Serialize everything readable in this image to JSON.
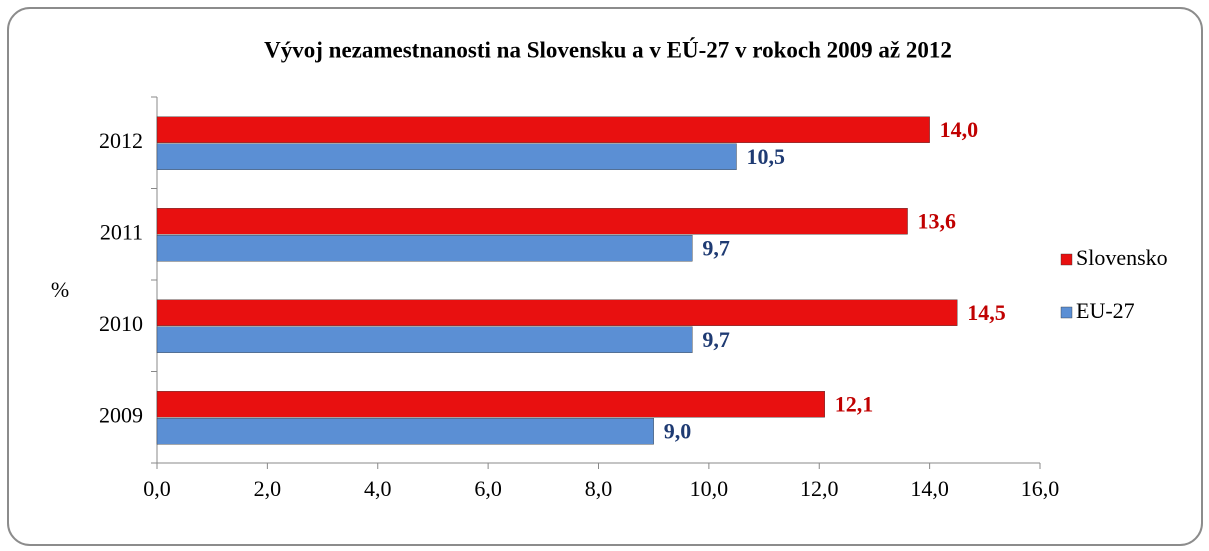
{
  "chart_data": {
    "type": "hbar",
    "title": "Vývoj nezamestnanosti na Slovensku a v EÚ-27 v rokoch 2009 až 2012",
    "ylabel": "%",
    "categories": [
      "2009",
      "2010",
      "2011",
      "2012"
    ],
    "series": [
      {
        "name": "Slovensko",
        "color": "#e81010",
        "label_color": "#c00000",
        "values": [
          12.1,
          14.5,
          13.6,
          14.0
        ],
        "value_labels": [
          "12,1",
          "14,5",
          "13,6",
          "14,0"
        ]
      },
      {
        "name": "EU-27",
        "color": "#5b8fd4",
        "label_color": "#1f3b73",
        "values": [
          9.0,
          9.7,
          9.7,
          10.5
        ],
        "value_labels": [
          "9,0",
          "9,7",
          "9,7",
          "10,5"
        ]
      }
    ],
    "xlim": [
      0,
      16
    ],
    "xticks": [
      {
        "value": 0,
        "label": "0,0"
      },
      {
        "value": 2,
        "label": "2,0"
      },
      {
        "value": 4,
        "label": "4,0"
      },
      {
        "value": 6,
        "label": "6,0"
      },
      {
        "value": 8,
        "label": "8,0"
      },
      {
        "value": 10,
        "label": "10,0"
      },
      {
        "value": 12,
        "label": "12,0"
      },
      {
        "value": 14,
        "label": "14,0"
      },
      {
        "value": 16,
        "label": "16,0"
      }
    ],
    "legend": "right"
  }
}
